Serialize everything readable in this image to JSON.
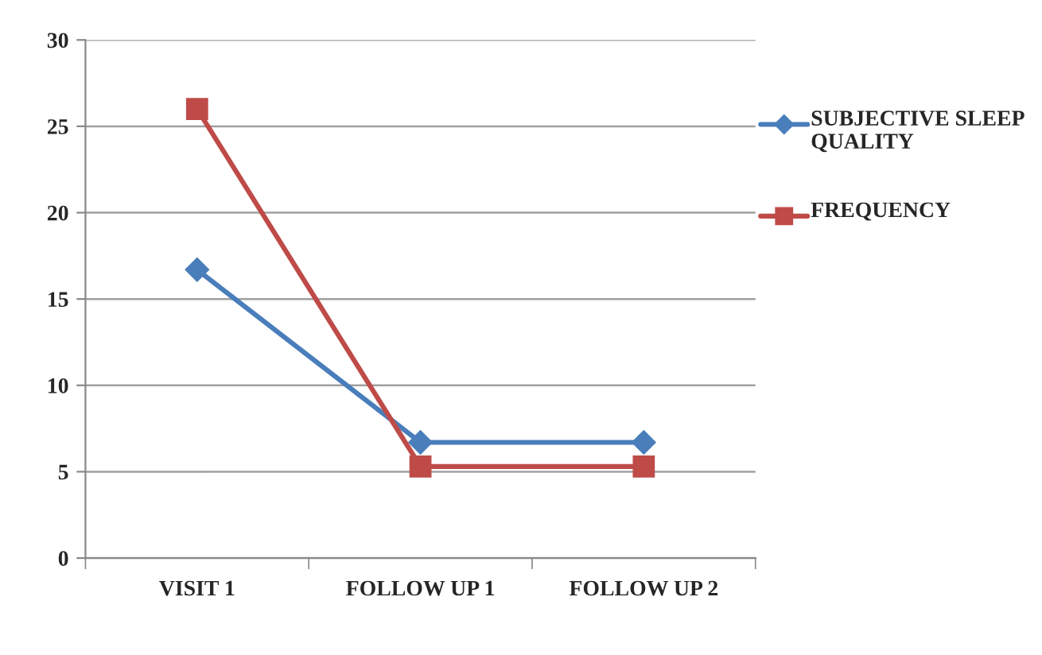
{
  "chart_data": {
    "type": "line",
    "categories": [
      "VISIT 1",
      "FOLLOW UP 1",
      "FOLLOW UP 2"
    ],
    "series": [
      {
        "name": "SUBJECTIVE SLEEP QUALITY",
        "color": "#4a7ebb",
        "marker": "diamond",
        "values": [
          16.7,
          6.7,
          6.7
        ]
      },
      {
        "name": "FREQUENCY",
        "color": "#be4b48",
        "marker": "square",
        "values": [
          26,
          5.3,
          5.3
        ]
      }
    ],
    "ylim": [
      0,
      30
    ],
    "yticks": [
      0,
      5,
      10,
      15,
      20,
      25,
      30
    ],
    "grid": "y",
    "legend": "right",
    "line_style": "solid"
  }
}
